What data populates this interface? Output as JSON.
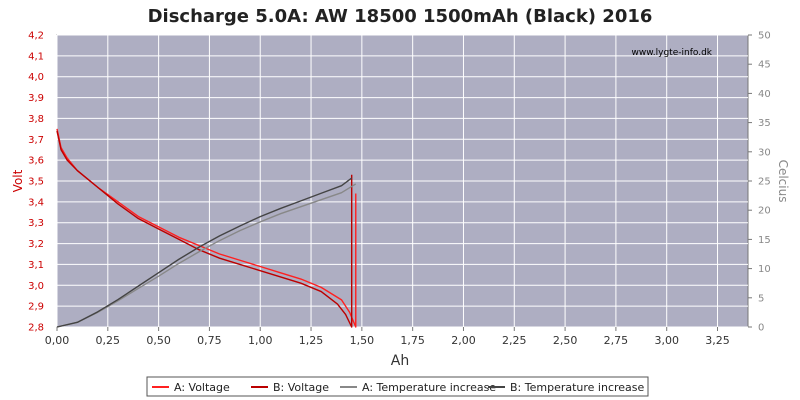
{
  "chart_data": {
    "type": "line",
    "title": "Discharge 5.0A: AW 18500 1500mAh (Black) 2016",
    "watermark": "www.lygte-info.dk",
    "xlabel": "Ah",
    "ylabel_left": "Volt",
    "ylabel_right": "Celcius",
    "xlim": [
      0,
      3.4
    ],
    "ylim_left": [
      2.8,
      4.2
    ],
    "ylim_right": [
      0,
      50
    ],
    "x_ticks": [
      "0,00",
      "0,25",
      "0,50",
      "0,75",
      "1,00",
      "1,25",
      "1,50",
      "1,75",
      "2,00",
      "2,25",
      "2,50",
      "2,75",
      "3,00",
      "3,25"
    ],
    "y_left_ticks": [
      "2,8",
      "2,9",
      "3,0",
      "3,1",
      "3,2",
      "3,3",
      "3,4",
      "3,5",
      "3,6",
      "3,7",
      "3,8",
      "3,9",
      "4,0",
      "4,1",
      "4,2"
    ],
    "y_right_ticks": [
      "0",
      "5",
      "10",
      "15",
      "20",
      "25",
      "30",
      "35",
      "40",
      "45",
      "50"
    ],
    "grid": true,
    "legend_placement": "bottom",
    "colors": {
      "plot_bg": "#aeaec2",
      "a_voltage": "#ff2020",
      "b_voltage": "#bb0000",
      "a_temp": "#888888",
      "b_temp": "#444444"
    },
    "series": [
      {
        "name": "A: Voltage",
        "axis": "left",
        "points": [
          [
            0,
            3.75
          ],
          [
            0.02,
            3.66
          ],
          [
            0.05,
            3.61
          ],
          [
            0.1,
            3.55
          ],
          [
            0.2,
            3.47
          ],
          [
            0.3,
            3.4
          ],
          [
            0.4,
            3.33
          ],
          [
            0.5,
            3.28
          ],
          [
            0.6,
            3.23
          ],
          [
            0.7,
            3.19
          ],
          [
            0.8,
            3.15
          ],
          [
            0.9,
            3.12
          ],
          [
            1.0,
            3.09
          ],
          [
            1.1,
            3.06
          ],
          [
            1.2,
            3.03
          ],
          [
            1.3,
            2.99
          ],
          [
            1.4,
            2.93
          ],
          [
            1.44,
            2.87
          ],
          [
            1.47,
            2.8
          ],
          [
            1.47,
            3.44
          ]
        ]
      },
      {
        "name": "B: Voltage",
        "axis": "left",
        "points": [
          [
            0,
            3.74
          ],
          [
            0.02,
            3.65
          ],
          [
            0.05,
            3.6
          ],
          [
            0.1,
            3.55
          ],
          [
            0.2,
            3.47
          ],
          [
            0.3,
            3.39
          ],
          [
            0.4,
            3.32
          ],
          [
            0.5,
            3.27
          ],
          [
            0.6,
            3.22
          ],
          [
            0.7,
            3.17
          ],
          [
            0.8,
            3.13
          ],
          [
            0.9,
            3.1
          ],
          [
            1.0,
            3.07
          ],
          [
            1.1,
            3.04
          ],
          [
            1.2,
            3.01
          ],
          [
            1.3,
            2.97
          ],
          [
            1.38,
            2.91
          ],
          [
            1.42,
            2.86
          ],
          [
            1.45,
            2.8
          ],
          [
            1.45,
            3.53
          ]
        ]
      },
      {
        "name": "A: Temperature increase",
        "axis": "right",
        "points": [
          [
            0,
            0
          ],
          [
            0.1,
            0.8
          ],
          [
            0.2,
            2.5
          ],
          [
            0.3,
            4.5
          ],
          [
            0.4,
            6.6
          ],
          [
            0.5,
            8.7
          ],
          [
            0.6,
            10.9
          ],
          [
            0.7,
            12.9
          ],
          [
            0.8,
            14.8
          ],
          [
            0.9,
            16.5
          ],
          [
            1.0,
            18.0
          ],
          [
            1.1,
            19.4
          ],
          [
            1.2,
            20.6
          ],
          [
            1.3,
            21.8
          ],
          [
            1.4,
            23.0
          ],
          [
            1.47,
            24.5
          ]
        ]
      },
      {
        "name": "B: Temperature increase",
        "axis": "right",
        "points": [
          [
            0,
            0
          ],
          [
            0.1,
            0.8
          ],
          [
            0.2,
            2.6
          ],
          [
            0.3,
            4.7
          ],
          [
            0.4,
            7.0
          ],
          [
            0.5,
            9.3
          ],
          [
            0.6,
            11.6
          ],
          [
            0.7,
            13.7
          ],
          [
            0.8,
            15.6
          ],
          [
            0.9,
            17.3
          ],
          [
            1.0,
            18.9
          ],
          [
            1.1,
            20.3
          ],
          [
            1.2,
            21.6
          ],
          [
            1.3,
            22.9
          ],
          [
            1.4,
            24.2
          ],
          [
            1.45,
            25.5
          ]
        ]
      }
    ]
  }
}
